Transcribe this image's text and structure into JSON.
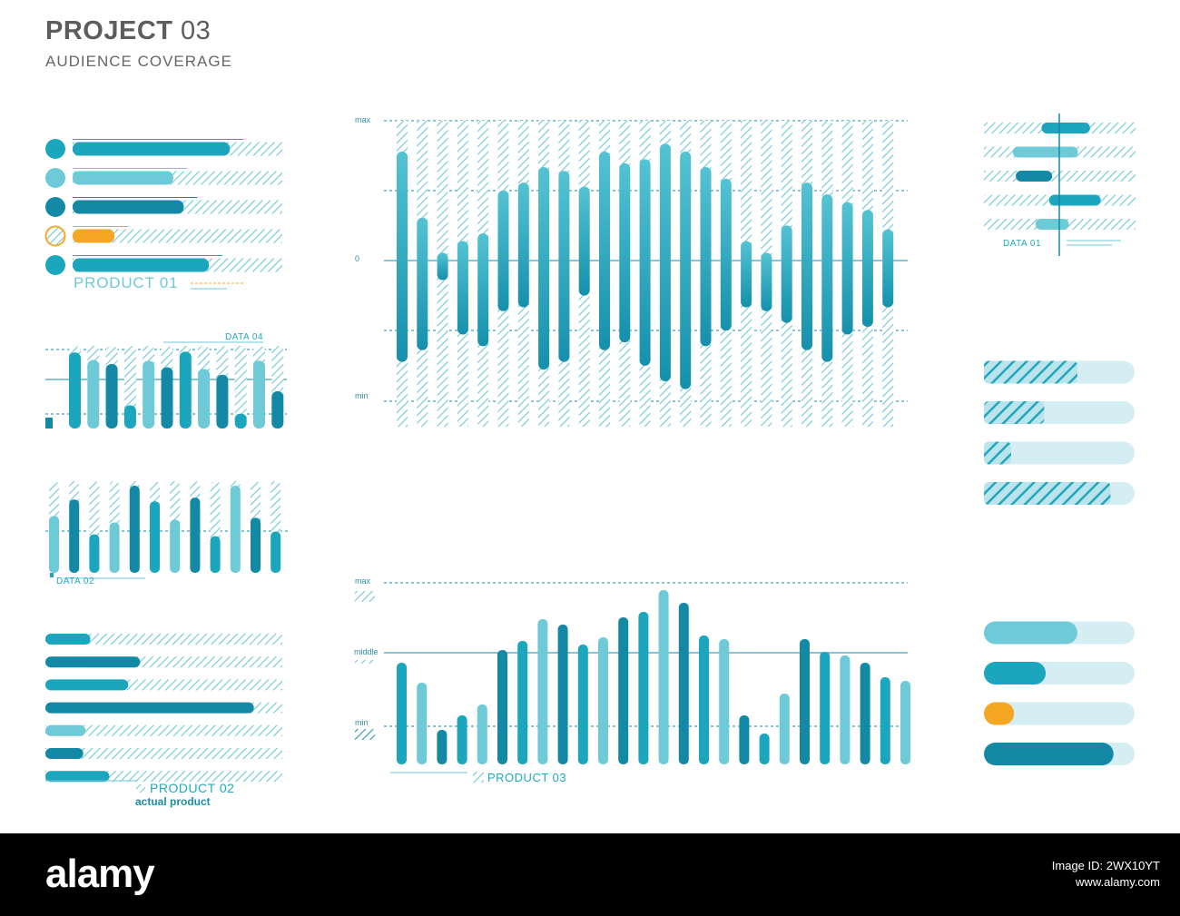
{
  "header": {
    "title_bold": "PROJECT",
    "title_num": "03",
    "subtitle": "AUDIENCE COVERAGE"
  },
  "colors": {
    "teal": "#1ba6bd",
    "light": "#6fcad8",
    "dark": "#1489a6",
    "orange": "#f5a623",
    "track": "#d4eef3",
    "stripe": "#6fc7d6"
  },
  "chart_data": [
    {
      "name_label": "PRODUCT 01",
      "type": "bar",
      "orientation": "horizontal",
      "values": [
        0.75,
        0.48,
        0.53,
        0.2,
        0.65
      ],
      "bullets": [
        "teal",
        "light",
        "dark",
        "orange",
        "teal"
      ]
    },
    {
      "name_label": "DATA 04",
      "type": "bar",
      "values": [
        0.92,
        0.83,
        0.78,
        0.28,
        0.82,
        0.74,
        0.93,
        0.72,
        0.65,
        0.18,
        0.82,
        0.45
      ]
    },
    {
      "name_label": "DATA 02",
      "type": "bar",
      "values": [
        0.62,
        0.8,
        0.42,
        0.55,
        0.95,
        0.78,
        0.58,
        0.82,
        0.4,
        0.95,
        0.6,
        0.45
      ]
    },
    {
      "name_label": "PRODUCT 02",
      "sub_label": "actual product",
      "type": "bar",
      "orientation": "horizontal",
      "values": [
        0.19,
        0.4,
        0.35,
        0.88,
        0.17,
        0.16,
        0.27
      ]
    },
    {
      "type": "bar",
      "subtype": "floating",
      "ticks": {
        "max": "max",
        "zero": "0",
        "min": "min"
      },
      "ranges": [
        [
          -130,
          140
        ],
        [
          -115,
          55
        ],
        [
          -25,
          10
        ],
        [
          -95,
          25
        ],
        [
          -110,
          35
        ],
        [
          -65,
          90
        ],
        [
          -60,
          100
        ],
        [
          -140,
          120
        ],
        [
          -130,
          115
        ],
        [
          -45,
          95
        ],
        [
          -115,
          140
        ],
        [
          -105,
          125
        ],
        [
          -135,
          130
        ],
        [
          -155,
          150
        ],
        [
          -165,
          140
        ],
        [
          -110,
          120
        ],
        [
          -90,
          105
        ],
        [
          -60,
          25
        ],
        [
          -65,
          10
        ],
        [
          -80,
          45
        ],
        [
          -115,
          100
        ],
        [
          -130,
          85
        ],
        [
          -95,
          75
        ],
        [
          -85,
          65
        ],
        [
          -60,
          40
        ]
      ],
      "ylim": [
        -180,
        180
      ]
    },
    {
      "name_label": "PRODUCT 03",
      "type": "bar",
      "ticks": {
        "max": "max",
        "middle": "middle",
        "min": "min"
      },
      "values": [
        0.56,
        0.45,
        0.19,
        0.27,
        0.33,
        0.63,
        0.68,
        0.8,
        0.77,
        0.66,
        0.7,
        0.81,
        0.84,
        0.96,
        0.89,
        0.71,
        0.69,
        0.27,
        0.17,
        0.39,
        0.69,
        0.62,
        0.6,
        0.56,
        0.48,
        0.46
      ],
      "ylim": [
        0,
        1
      ]
    },
    {
      "name_label": "DATA 01",
      "type": "range",
      "orientation": "horizontal",
      "ranges": [
        [
          0.38,
          0.7
        ],
        [
          0.19,
          0.62
        ],
        [
          0.21,
          0.45
        ],
        [
          0.43,
          0.77
        ],
        [
          0.34,
          0.56
        ]
      ]
    },
    {
      "type": "bar",
      "orientation": "horizontal",
      "subtype": "progress",
      "values": [
        0.62,
        0.4,
        0.18,
        0.84
      ]
    },
    {
      "type": "bar",
      "orientation": "horizontal",
      "subtype": "progress",
      "values": [
        0.62,
        0.41,
        0.2,
        0.86
      ],
      "fills": [
        "light",
        "teal",
        "orange",
        "dark"
      ]
    }
  ],
  "footer": {
    "brand": "alamy",
    "line1": "Image ID: 2WX10YT",
    "line2": "www.alamy.com"
  }
}
